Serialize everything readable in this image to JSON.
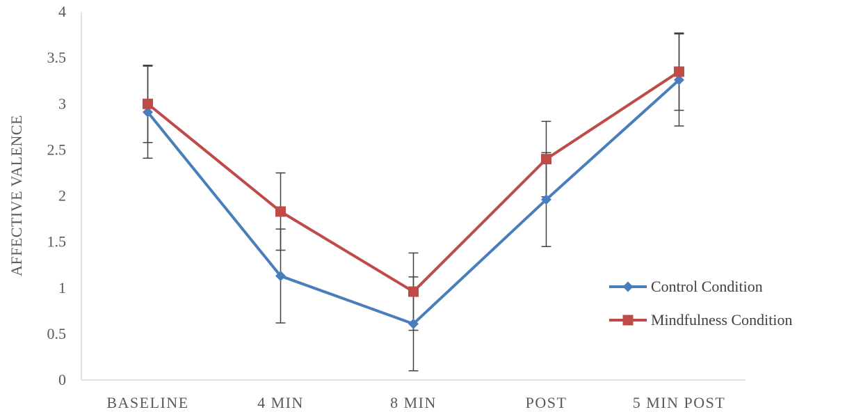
{
  "chart_data": {
    "type": "line",
    "title": "",
    "xlabel": "",
    "ylabel": "AFFECTIVE VALENCE",
    "categories": [
      "BASELINE",
      "4 MIN",
      "8 MIN",
      "POST",
      "5 MIN POST"
    ],
    "ylim": [
      0,
      4
    ],
    "yticks": [
      0,
      0.5,
      1,
      1.5,
      2,
      2.5,
      3,
      3.5,
      4
    ],
    "ytick_labels": [
      "0",
      "0.5",
      "1",
      "1.5",
      "2",
      "2.5",
      "3",
      "3.5",
      "4"
    ],
    "grid": false,
    "legend_position": "right",
    "series": [
      {
        "name": "Control Condition",
        "color": "#4a7ebb",
        "marker": "diamond",
        "values": [
          2.91,
          1.13,
          0.61,
          1.96,
          3.26
        ],
        "error": [
          0.5,
          0.51,
          0.51,
          0.51,
          0.5
        ]
      },
      {
        "name": "Mindfulness Condition",
        "color": "#be4b48",
        "marker": "square",
        "values": [
          3.0,
          1.83,
          0.96,
          2.4,
          3.35
        ],
        "error": [
          0.42,
          0.42,
          0.42,
          0.41,
          0.42
        ]
      }
    ],
    "error_bar_color": "#404040"
  }
}
